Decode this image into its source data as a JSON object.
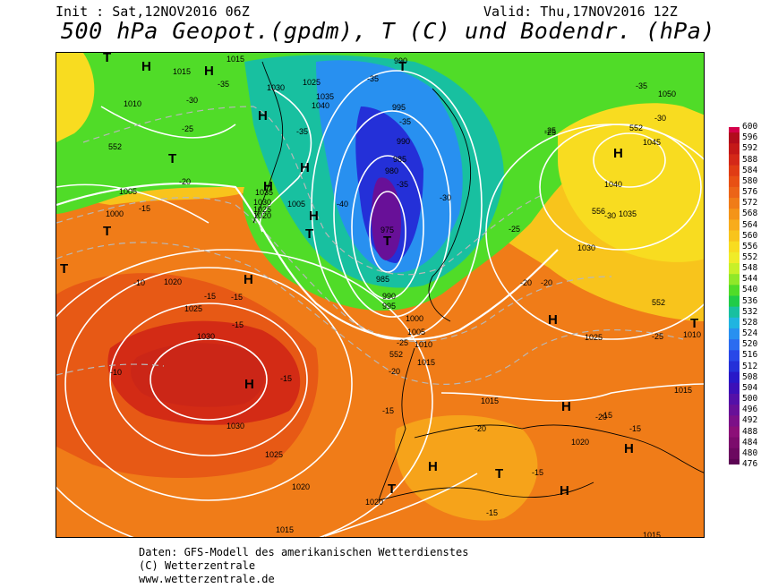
{
  "header": {
    "init": "Init : Sat,12NOV2016 06Z",
    "valid": "Valid: Thu,17NOV2016 12Z",
    "title": "500 hPa Geopot.(gpdm), T (C) und Bodendr. (hPa)"
  },
  "footer": {
    "line1": "Daten: GFS-Modell des amerikanischen Wetterdienstes",
    "line2": "(C) Wetterzentrale",
    "line3": "www.wetterzentrale.de"
  },
  "legend": {
    "labels": [
      "600",
      "596",
      "592",
      "588",
      "584",
      "580",
      "576",
      "572",
      "568",
      "564",
      "560",
      "556",
      "552",
      "548",
      "544",
      "540",
      "536",
      "532",
      "528",
      "524",
      "520",
      "516",
      "512",
      "508",
      "504",
      "500",
      "496",
      "492",
      "488",
      "484",
      "480",
      "476"
    ],
    "colors": [
      "#d4004a",
      "#b20c1c",
      "#c41818",
      "#d42818",
      "#e03c14",
      "#e85014",
      "#ec6418",
      "#f07c18",
      "#f49418",
      "#f8ac1c",
      "#f8c41c",
      "#f8dc20",
      "#f0ec28",
      "#c8f028",
      "#90e828",
      "#50dc28",
      "#20cc48",
      "#18c0a0",
      "#20b4e0",
      "#2890f0",
      "#2c6cf0",
      "#2848e8",
      "#2430d8",
      "#2818c8",
      "#3c10b8",
      "#5410a8",
      "#681098",
      "#7c1088",
      "#8c1078",
      "#7c0c6c",
      "#6c0860",
      "#5c0454"
    ]
  },
  "map": {
    "pressure_labels": [
      "1015",
      "1015",
      "1010",
      "1005",
      "1000",
      "1025",
      "1030",
      "1035",
      "1040",
      "1030",
      "1035",
      "1025",
      "1020",
      "1005",
      "1020",
      "1025",
      "1030",
      "1030",
      "1025",
      "1020",
      "1015",
      "990",
      "995",
      "990",
      "985",
      "980",
      "975",
      "985",
      "990",
      "995",
      "1000",
      "1005",
      "1010",
      "1015",
      "1015",
      "1020",
      "1025",
      "1015",
      "1045",
      "1040",
      "1035",
      "1050",
      "1030",
      "1010",
      "1015",
      "1020"
    ],
    "temp_labels": [
      "-35",
      "-30",
      "-25",
      "-20",
      "-15",
      "-10",
      "-15",
      "-15",
      "-10",
      "-15",
      "-15",
      "-35",
      "-35",
      "-35",
      "-40",
      "-35",
      "-30",
      "-25",
      "-25",
      "-20",
      "-20",
      "-20",
      "-15",
      "-25",
      "-20",
      "-15",
      "-15",
      "-15",
      "-35",
      "-30",
      "-25",
      "-30",
      "-25",
      "-20",
      "-15"
    ],
    "contour_labels": [
      "552",
      "556",
      "552",
      "552",
      "552"
    ],
    "pressure_centers": [
      "H",
      "H",
      "H",
      "H",
      "H",
      "H",
      "H",
      "H",
      "H",
      "H",
      "H",
      "H",
      "H",
      "H",
      "T",
      "T",
      "T",
      "T",
      "T",
      "T",
      "T",
      "T",
      "T",
      "T"
    ]
  }
}
